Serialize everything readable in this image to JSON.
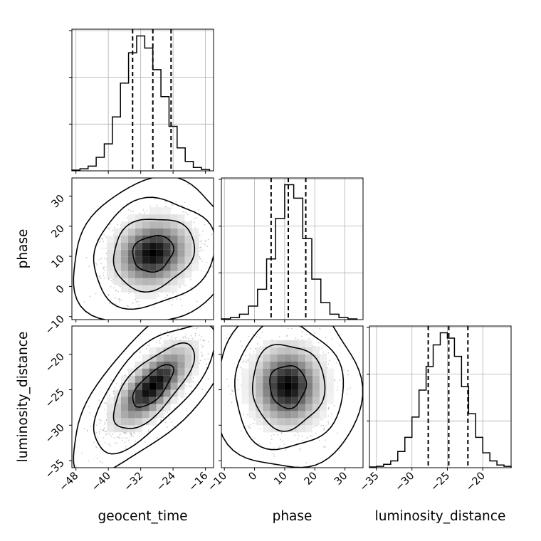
{
  "chart_data": {
    "type": "corner",
    "grid": true,
    "parameters": [
      {
        "name": "geocent_time",
        "label": "geocent_time",
        "range": [
          -49,
          -14
        ],
        "ticks": [
          -48,
          -40,
          -32,
          -24,
          -16
        ],
        "tick_labels": [
          "−48",
          "−40",
          "−32",
          "−24",
          "−16"
        ],
        "mean": -29,
        "sd": 5.0,
        "quantiles": [
          -34,
          -29,
          -24.5
        ]
      },
      {
        "name": "phase",
        "label": "phase",
        "range": [
          -11,
          36
        ],
        "ticks": [
          -10,
          0,
          10,
          20,
          30
        ],
        "tick_labels": [
          "−10",
          "0",
          "10",
          "20",
          "30"
        ],
        "mean": 11,
        "sd": 6.0,
        "quantiles": [
          5.5,
          11.2,
          17
        ]
      },
      {
        "name": "luminosity_distance",
        "label": "luminosity_distance",
        "range": [
          -36,
          -16
        ],
        "ticks": [
          -35,
          -30,
          -25,
          -20
        ],
        "tick_labels": [
          "−35",
          "−30",
          "−25",
          "−20"
        ],
        "mean": -24.5,
        "sd": 3.0,
        "quantiles": [
          -27.7,
          -24.8,
          -22.1
        ]
      }
    ],
    "histograms": [
      {
        "parameter": "geocent_time",
        "bin_edges": [
          -49,
          -47,
          -45,
          -43,
          -41,
          -39,
          -37,
          -35,
          -33,
          -31,
          -29,
          -27,
          -25,
          -23,
          -21,
          -19,
          -17,
          -15
        ],
        "counts": [
          1,
          3,
          7,
          20,
          40,
          80,
          130,
          175,
          200,
          182,
          150,
          110,
          66,
          34,
          14,
          5,
          2
        ]
      },
      {
        "parameter": "phase",
        "bin_edges": [
          -11,
          -8,
          -5,
          -2,
          1,
          4,
          7,
          10,
          13,
          16,
          19,
          22,
          25,
          28,
          31,
          34
        ],
        "counts": [
          1,
          3,
          8,
          20,
          45,
          90,
          150,
          200,
          180,
          120,
          60,
          25,
          8,
          3,
          1
        ]
      },
      {
        "parameter": "luminosity_distance",
        "bin_edges": [
          -36,
          -35,
          -34,
          -33,
          -32,
          -31,
          -30,
          -29,
          -28,
          -27,
          -26,
          -25,
          -24,
          -23,
          -22,
          -21,
          -20,
          -19,
          -18,
          -17,
          -16
        ],
        "counts": [
          1,
          2,
          5,
          10,
          24,
          45,
          75,
          115,
          150,
          182,
          200,
          192,
          165,
          120,
          80,
          45,
          22,
          10,
          4,
          2
        ]
      }
    ],
    "pairs": [
      {
        "x": "geocent_time",
        "y": "phase",
        "correlation": 0.15
      },
      {
        "x": "geocent_time",
        "y": "luminosity_distance",
        "correlation": 0.7
      },
      {
        "x": "phase",
        "y": "luminosity_distance",
        "correlation": 0.0
      }
    ],
    "contour_levels_sigma": [
      0.5,
      1.0,
      1.5,
      2.0
    ]
  }
}
